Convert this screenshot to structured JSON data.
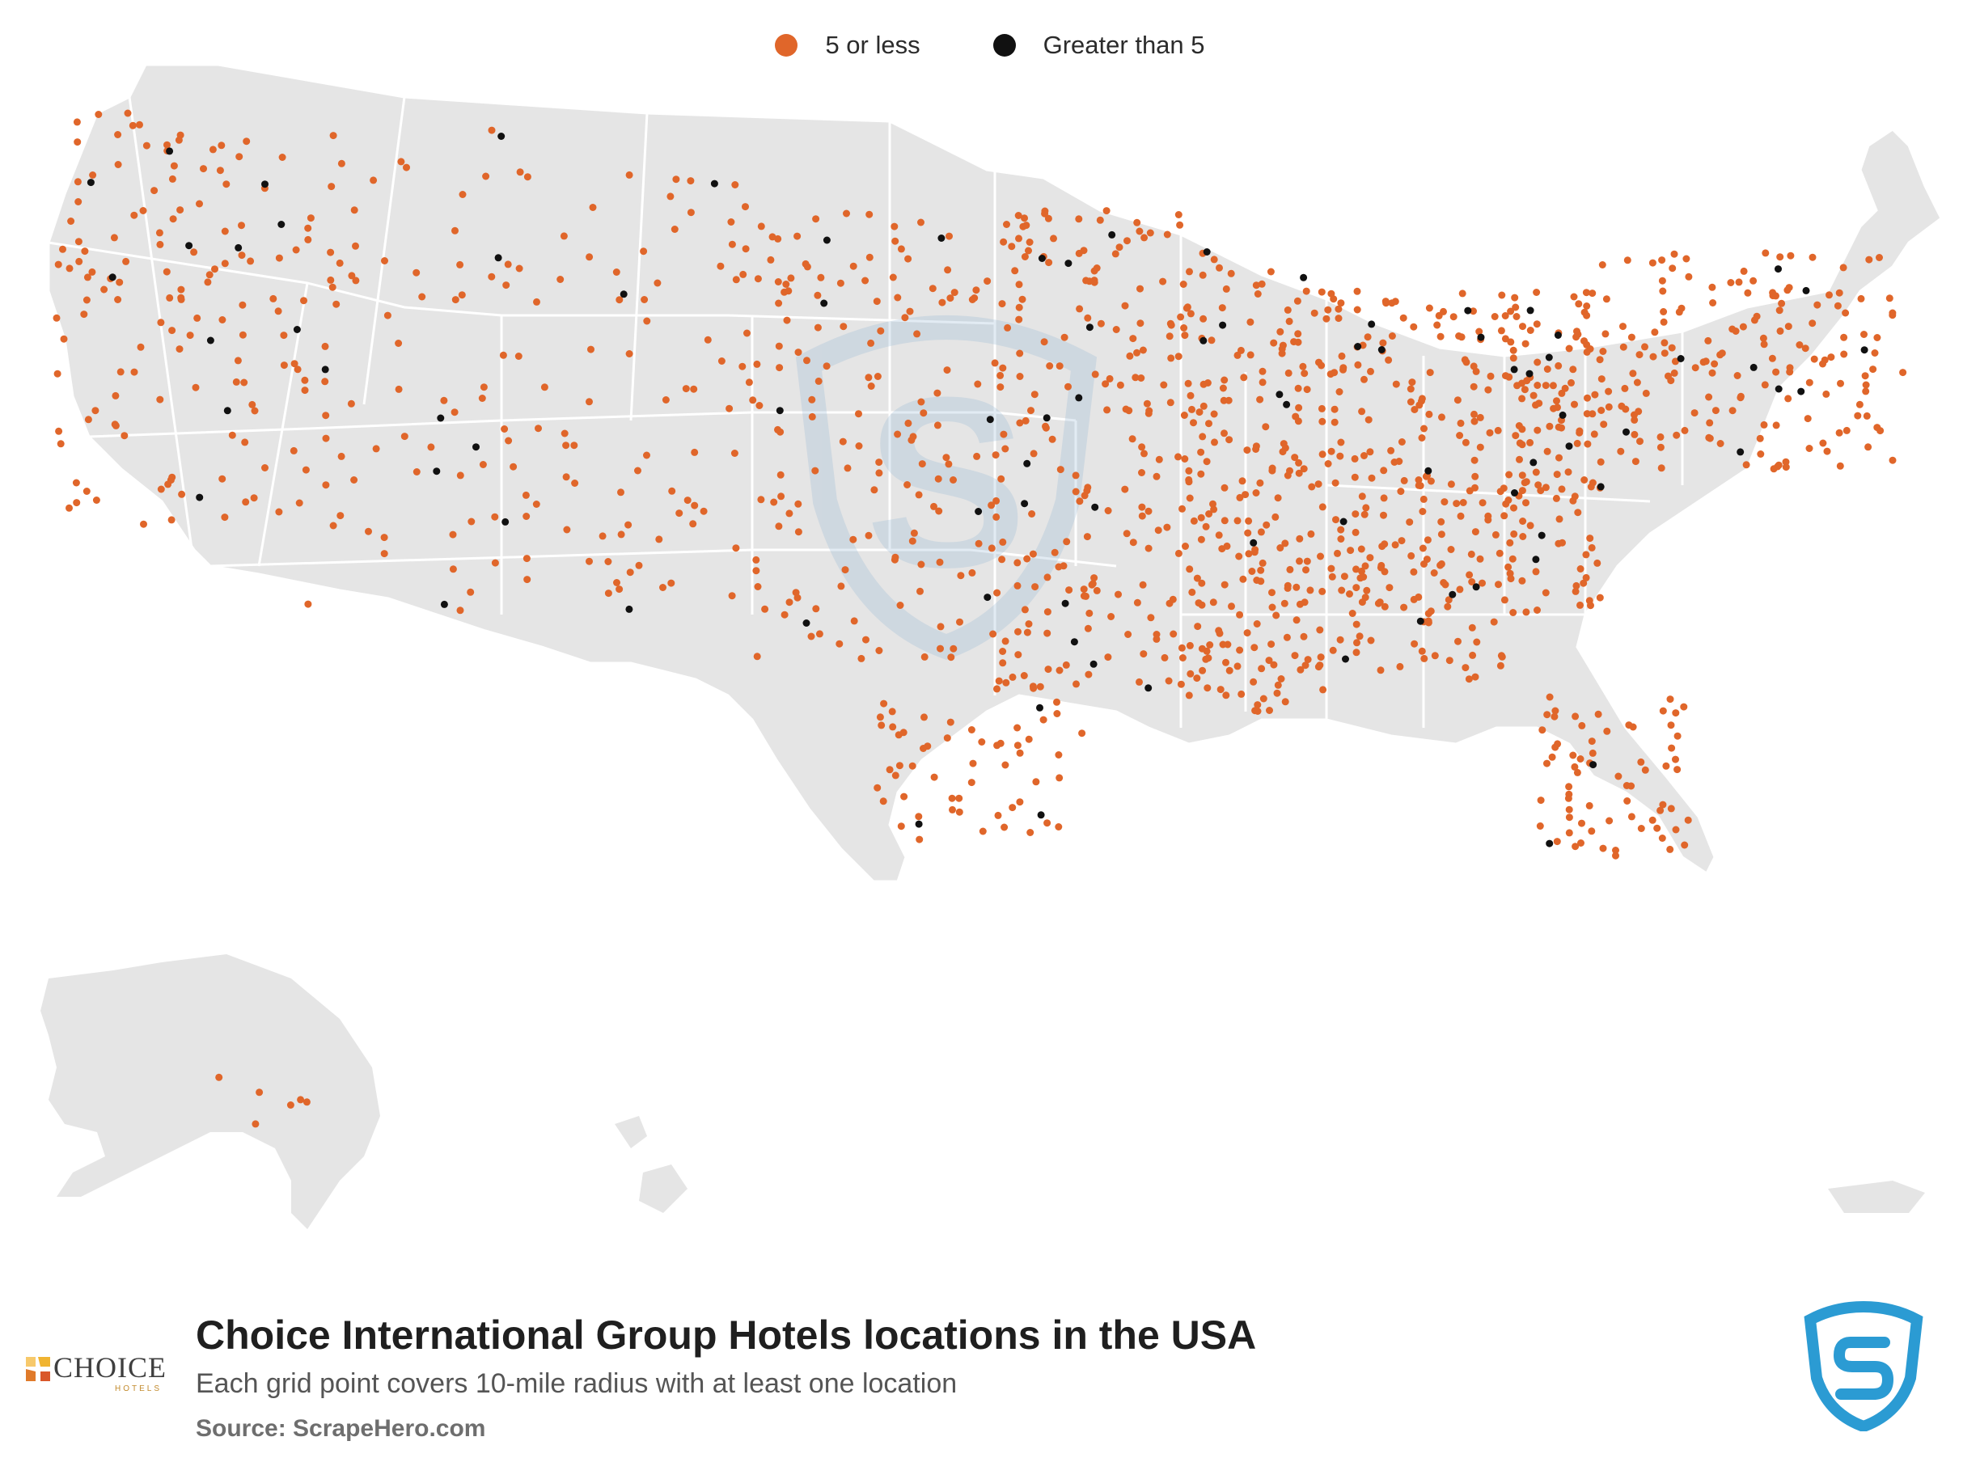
{
  "legend": {
    "items": [
      {
        "label": "5 or less",
        "color": "#E0662A"
      },
      {
        "label": "Greater than 5",
        "color": "#111111"
      }
    ]
  },
  "footer": {
    "title": "Choice International Group Hotels locations in the USA",
    "subtitle": "Each grid point covers 10-mile radius with at least one location",
    "source": "Source: ScrapeHero.com",
    "brand_logo": {
      "text": "CHOICE",
      "subtext": "HOTELS"
    },
    "publisher_logo_icon": "scrapehero-shield-icon"
  },
  "colors": {
    "land": "#E5E5E5",
    "border": "#FFFFFF",
    "low": "#E0662A",
    "high": "#111111",
    "watermark": "#BFD3E4"
  }
}
